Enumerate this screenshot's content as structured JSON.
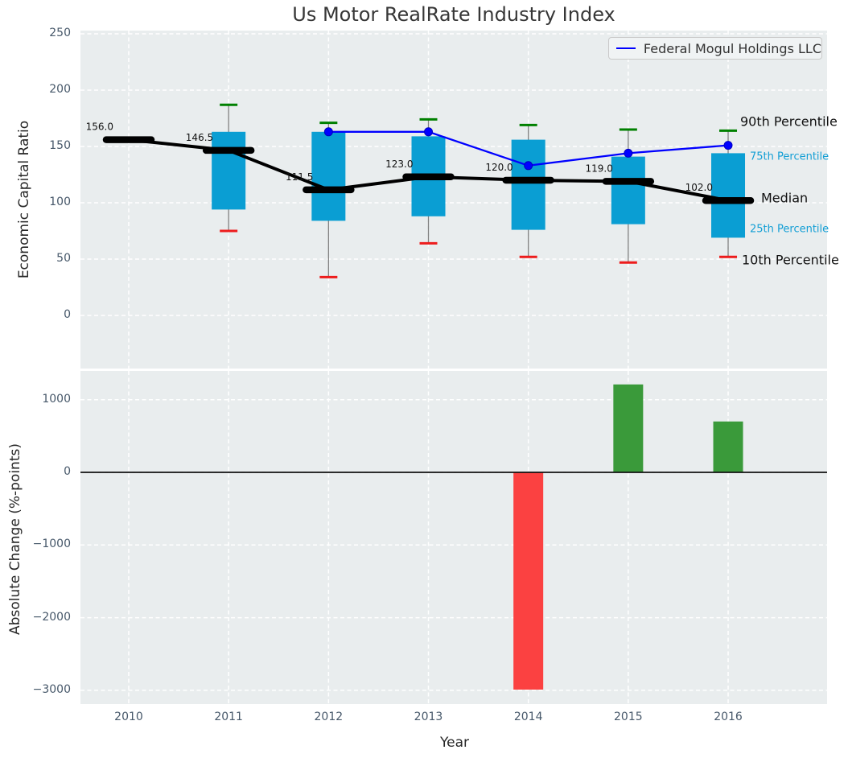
{
  "title": "Us Motor RealRate Industry Index",
  "legend": {
    "series_label": "Federal Mogul Holdings LLC"
  },
  "top_chart": {
    "ylabel": "Economic Capital Ratio"
  },
  "bottom_chart": {
    "ylabel": "Absolute Change (%-points)",
    "xlabel": "Year"
  },
  "annotations": {
    "p90": "90th Percentile",
    "p75": "75th Percentile",
    "median": "Median",
    "p25": "25th Percentile",
    "p10": "10th Percentile"
  },
  "colors": {
    "axes_background": "#e9edee",
    "grid": "#ffffff",
    "box_fill": "#0a9ed3",
    "whisker": "#808080",
    "p90_cap": "#008000",
    "p10_cap": "#ed1c1c",
    "median_line": "#000000",
    "company_line": "#0000ff",
    "bar_positive": "#3a9a3a",
    "bar_negative": "#fb4141",
    "zero_line": "#111111",
    "tick_label": "#47586a",
    "annotation_cyan": "#149fd5"
  },
  "chart_data": [
    {
      "type": "box",
      "title": "Us Motor RealRate Industry Index",
      "ylabel": "Economic Capital Ratio",
      "x": [
        2010,
        2011,
        2012,
        2013,
        2014,
        2015,
        2016
      ],
      "yticks": [
        250,
        200,
        150,
        100,
        50,
        0
      ],
      "ylim": [
        -47,
        253
      ],
      "grid": true,
      "legend_position": "upper right",
      "boxes": {
        "p10": [
          null,
          75,
          34,
          64,
          52,
          47,
          52
        ],
        "p25": [
          null,
          94,
          84,
          88,
          76,
          81,
          69
        ],
        "median": [
          156.0,
          146.5,
          111.5,
          123.0,
          120.0,
          119.0,
          102.0
        ],
        "p75": [
          null,
          163,
          163,
          159,
          156,
          141,
          144
        ],
        "p90": [
          null,
          187,
          171,
          174,
          169,
          165,
          164
        ]
      },
      "median_labels": [
        "156.0",
        "146.5",
        "111.5",
        "123.0",
        "120.0",
        "119.0",
        "102.0"
      ],
      "series": [
        {
          "name": "Federal Mogul Holdings LLC",
          "x": [
            2012,
            2013,
            2014,
            2015,
            2016
          ],
          "values": [
            163,
            163,
            133,
            144,
            151
          ]
        }
      ]
    },
    {
      "type": "bar",
      "ylabel": "Absolute Change (%-points)",
      "xlabel": "Year",
      "x": [
        2010,
        2011,
        2012,
        2013,
        2014,
        2015,
        2016
      ],
      "values": [
        0,
        0,
        0,
        0,
        -2990,
        1210,
        700
      ],
      "yticks": [
        1000,
        0,
        -1000,
        -2000,
        -3000
      ],
      "ylim": [
        -3180,
        1400
      ],
      "grid": true
    }
  ]
}
